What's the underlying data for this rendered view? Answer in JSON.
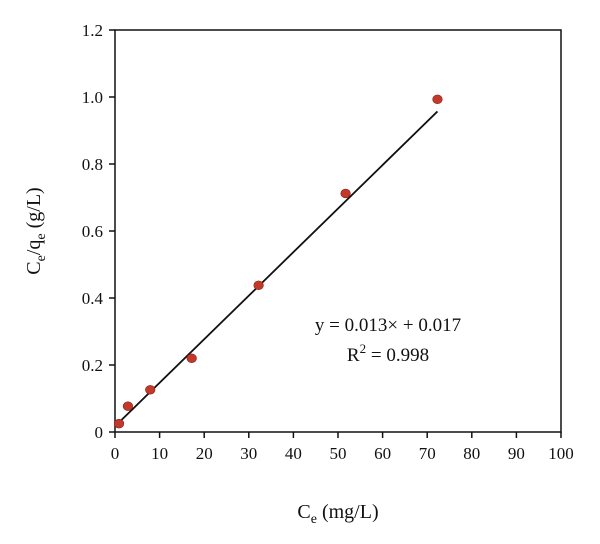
{
  "chart_data": {
    "type": "scatter",
    "x": [
      0.9,
      2.9,
      7.9,
      17.2,
      32.2,
      51.7,
      72.3
    ],
    "y": [
      0.025,
      0.077,
      0.126,
      0.22,
      0.438,
      0.712,
      0.993
    ],
    "point_color": "#c0392b",
    "fit_line": {
      "slope": 0.013,
      "intercept": 0.017,
      "x_range": [
        0.5,
        72.3
      ],
      "color": "#111111"
    },
    "title": "",
    "xlabel": {
      "main": "C",
      "sub": "e",
      "rest": " (mg/L)"
    },
    "ylabel": {
      "c": "C",
      "sub1": "e",
      "slash": "/q",
      "sub2": "e",
      "rest": " (g/L)"
    },
    "xlim": [
      0,
      100
    ],
    "ylim": [
      0,
      1.2
    ],
    "xticks": [
      "0",
      "10",
      "20",
      "30",
      "40",
      "50",
      "60",
      "70",
      "80",
      "90",
      "100"
    ],
    "yticks": [
      "0",
      "0.2",
      "0.4",
      "0.6",
      "0.8",
      "1.0",
      "1.2"
    ],
    "grid": false,
    "annotations": {
      "equation": "y = 0.013× + 0.017",
      "r2_prefix": "R",
      "r2_sup": "2",
      "r2_value": " = 0.998"
    }
  }
}
